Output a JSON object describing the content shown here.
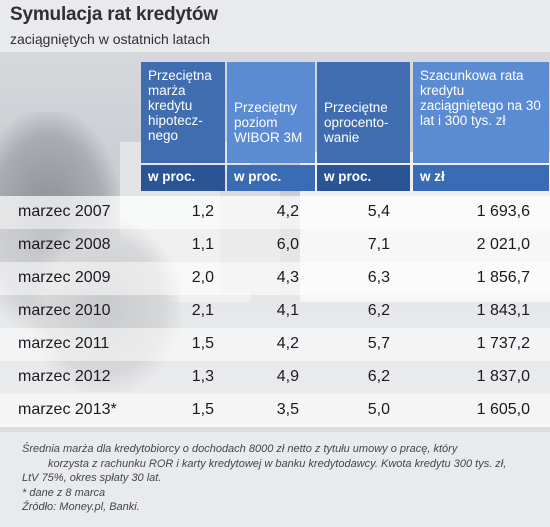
{
  "title": "Symulacja rat kredytów",
  "subtitle": "zaciągniętych w ostatnich latach",
  "columns": [
    {
      "header": "Przeciętna marża kredytu hipotecz-nego",
      "unit": "w proc."
    },
    {
      "header": "Przeciętny poziom WIBOR 3M",
      "unit": "w proc."
    },
    {
      "header": "Przeciętne oprocento-wanie",
      "unit": "w proc."
    },
    {
      "header": "Szacunkowa rata kredytu zaciągniętego na 30 lat i 300 tys. zł",
      "unit": "w zł"
    }
  ],
  "rows": [
    {
      "label": "marzec 2007",
      "margin": "1,2",
      "wibor": "4,2",
      "rate": "5,4",
      "installment": "1 693,6"
    },
    {
      "label": "marzec 2008",
      "margin": "1,1",
      "wibor": "6,0",
      "rate": "7,1",
      "installment": "2 021,0"
    },
    {
      "label": "marzec 2009",
      "margin": "2,0",
      "wibor": "4,3",
      "rate": "6,3",
      "installment": "1 856,7"
    },
    {
      "label": "marzec 2010",
      "margin": "2,1",
      "wibor": "4,1",
      "rate": "6,2",
      "installment": "1 843,1"
    },
    {
      "label": "marzec 2011",
      "margin": "1,5",
      "wibor": "4,2",
      "rate": "5,7",
      "installment": "1 737,2"
    },
    {
      "label": "marzec 2012",
      "margin": "1,3",
      "wibor": "4,9",
      "rate": "6,2",
      "installment": "1 837,0"
    },
    {
      "label": "marzec 2013*",
      "margin": "1,5",
      "wibor": "3,5",
      "rate": "5,0",
      "installment": "1 605,0"
    }
  ],
  "footer": {
    "note_line1": "Średnia marża dla kredytobiorcy o dochodach 8000 zł netto z tytułu umowy o pracę, który",
    "note_line2": "korzysta z rachunku ROR i karty kredytowej w banku kredytodawcy. Kwota kredytu 300 tys. zł,",
    "note_line3": "LtV 75%, okres spłaty 30 lat.",
    "asterisk_note": "* dane z 8 marca",
    "source": "Źródło: Money.pl, Banki."
  },
  "colors": {
    "header_dark": "#3f6db0",
    "header_light": "#5b8bd2",
    "unit_dark": "#2a5494",
    "unit_light": "#3a6bb5"
  }
}
